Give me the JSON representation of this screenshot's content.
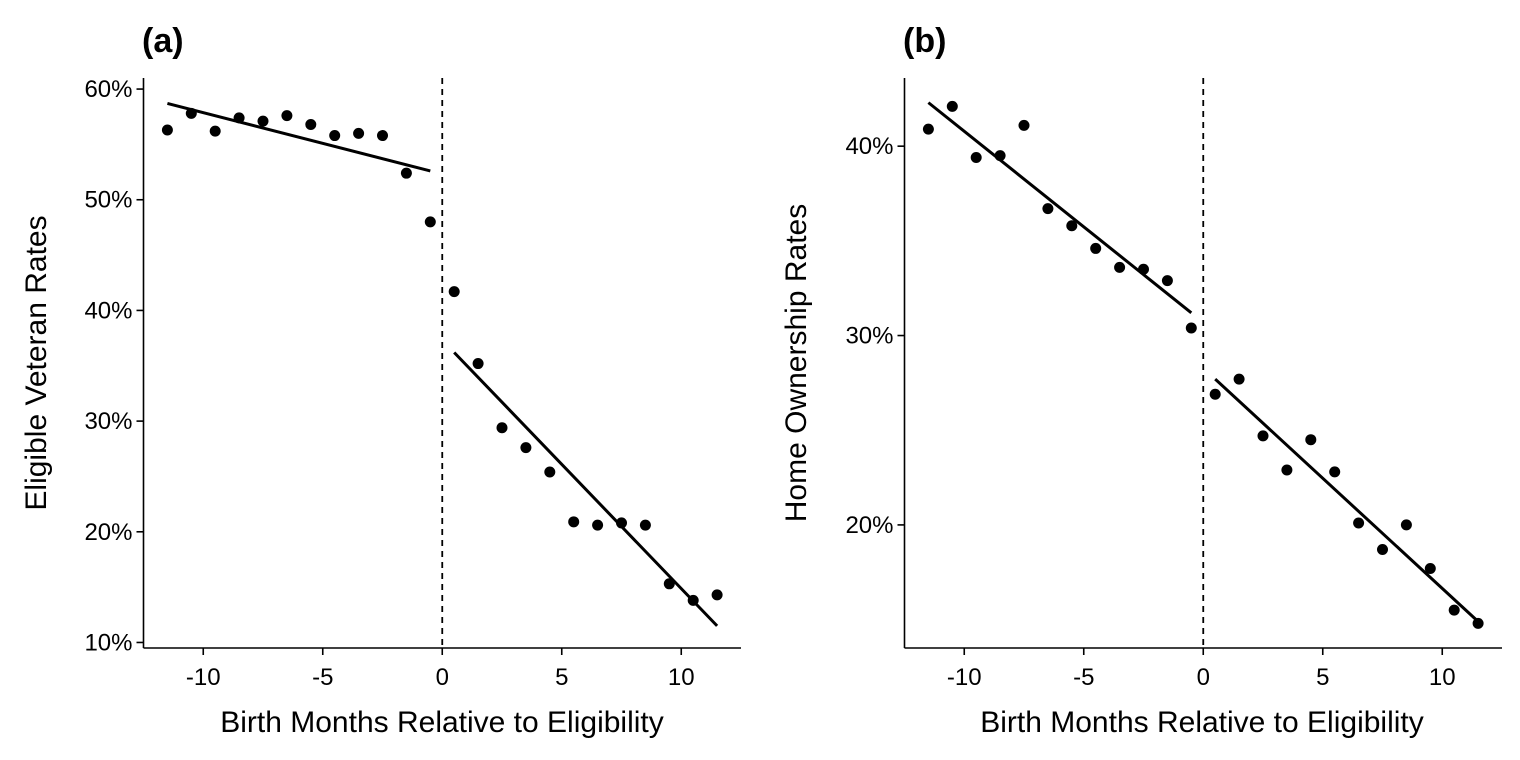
{
  "chart_data": [
    {
      "panel": "(a)",
      "type": "scatter",
      "xlabel": "Birth Months Relative to Eligibility",
      "ylabel": "Eligible Veteran Rates",
      "xlim": [
        -12.5,
        12.5
      ],
      "ylim": [
        9.5,
        61.0
      ],
      "x_ticks": [
        -10,
        -5,
        0,
        5,
        10
      ],
      "y_ticks": [
        10,
        20,
        30,
        40,
        50,
        60
      ],
      "y_tick_labels": [
        "10%",
        "20%",
        "30%",
        "40%",
        "50%",
        "60%"
      ],
      "x_tick_labels": [
        "-10",
        "-5",
        "0",
        "5",
        "10"
      ],
      "cutoff": 0,
      "points": [
        {
          "x": -11.5,
          "y": 56.3
        },
        {
          "x": -10.5,
          "y": 57.8
        },
        {
          "x": -9.5,
          "y": 56.2
        },
        {
          "x": -8.5,
          "y": 57.4
        },
        {
          "x": -7.5,
          "y": 57.1
        },
        {
          "x": -6.5,
          "y": 57.6
        },
        {
          "x": -5.5,
          "y": 56.8
        },
        {
          "x": -4.5,
          "y": 55.8
        },
        {
          "x": -3.5,
          "y": 56.0
        },
        {
          "x": -2.5,
          "y": 55.8
        },
        {
          "x": -1.5,
          "y": 52.4
        },
        {
          "x": -0.5,
          "y": 48.0
        },
        {
          "x": 0.5,
          "y": 41.7
        },
        {
          "x": 1.5,
          "y": 35.2
        },
        {
          "x": 2.5,
          "y": 29.4
        },
        {
          "x": 3.5,
          "y": 27.6
        },
        {
          "x": 4.5,
          "y": 25.4
        },
        {
          "x": 5.5,
          "y": 20.9
        },
        {
          "x": 6.5,
          "y": 20.6
        },
        {
          "x": 7.5,
          "y": 20.8
        },
        {
          "x": 8.5,
          "y": 20.6
        },
        {
          "x": 9.5,
          "y": 15.3
        },
        {
          "x": 10.5,
          "y": 13.8
        },
        {
          "x": 11.5,
          "y": 14.3
        }
      ],
      "fit_lines": [
        {
          "x": [
            -11.5,
            -0.5
          ],
          "y": [
            58.7,
            52.6
          ]
        },
        {
          "x": [
            0.5,
            11.5
          ],
          "y": [
            36.2,
            11.5
          ]
        }
      ]
    },
    {
      "panel": "(b)",
      "type": "scatter",
      "xlabel": "Birth Months Relative to Eligibility",
      "ylabel": "Home Ownership Rates",
      "xlim": [
        -12.5,
        12.5
      ],
      "ylim": [
        13.5,
        43.6
      ],
      "x_ticks": [
        -10,
        -5,
        0,
        5,
        10
      ],
      "y_ticks": [
        20,
        30,
        40
      ],
      "y_tick_labels": [
        "20%",
        "30%",
        "40%"
      ],
      "x_tick_labels": [
        "-10",
        "-5",
        "0",
        "5",
        "10"
      ],
      "cutoff": 0,
      "points": [
        {
          "x": -11.5,
          "y": 40.9
        },
        {
          "x": -10.5,
          "y": 42.1
        },
        {
          "x": -9.5,
          "y": 39.4
        },
        {
          "x": -8.5,
          "y": 39.5
        },
        {
          "x": -7.5,
          "y": 41.1
        },
        {
          "x": -6.5,
          "y": 36.7
        },
        {
          "x": -5.5,
          "y": 35.8
        },
        {
          "x": -4.5,
          "y": 34.6
        },
        {
          "x": -3.5,
          "y": 33.6
        },
        {
          "x": -2.5,
          "y": 33.5
        },
        {
          "x": -1.5,
          "y": 32.9
        },
        {
          "x": -0.5,
          "y": 30.4
        },
        {
          "x": 0.5,
          "y": 26.9
        },
        {
          "x": 1.5,
          "y": 27.7
        },
        {
          "x": 2.5,
          "y": 24.7
        },
        {
          "x": 3.5,
          "y": 22.9
        },
        {
          "x": 4.5,
          "y": 24.5
        },
        {
          "x": 5.5,
          "y": 22.8
        },
        {
          "x": 6.5,
          "y": 20.1
        },
        {
          "x": 7.5,
          "y": 18.7
        },
        {
          "x": 8.5,
          "y": 20.0
        },
        {
          "x": 9.5,
          "y": 17.7
        },
        {
          "x": 10.5,
          "y": 15.5
        },
        {
          "x": 11.5,
          "y": 14.8
        }
      ],
      "fit_lines": [
        {
          "x": [
            -11.5,
            -0.5
          ],
          "y": [
            42.3,
            31.2
          ]
        },
        {
          "x": [
            0.5,
            11.5
          ],
          "y": [
            27.7,
            14.9
          ]
        }
      ]
    }
  ]
}
